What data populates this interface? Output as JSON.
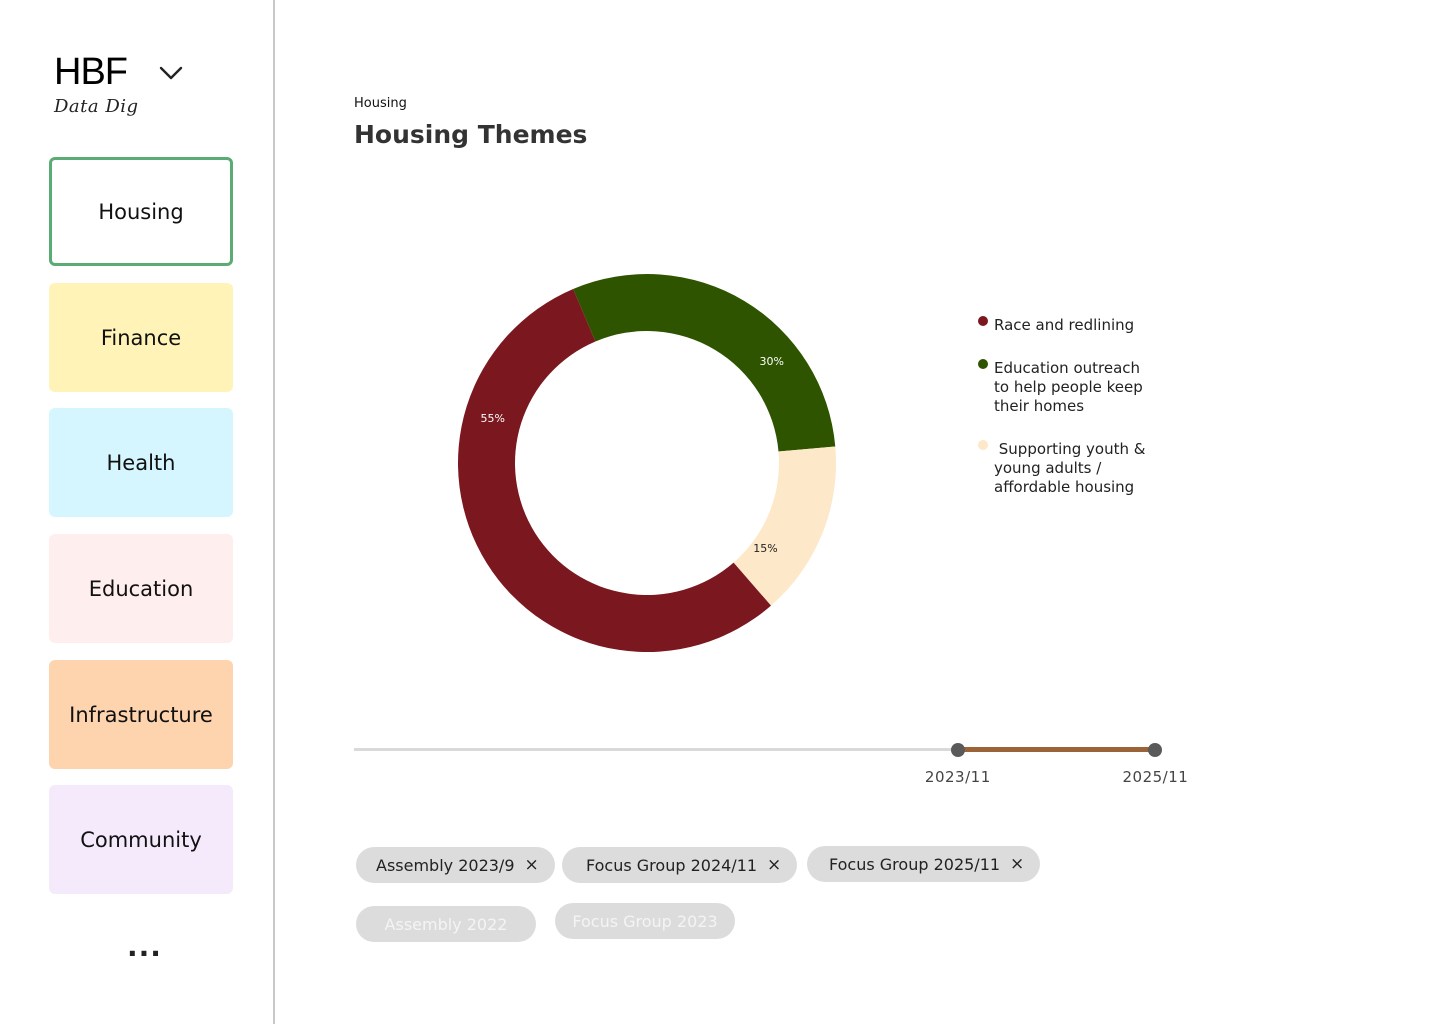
{
  "brand": {
    "title": "HBF",
    "subtitle": "Data Dig"
  },
  "sidebar": {
    "items": [
      {
        "label": "Housing",
        "color": "#ffffff",
        "border": "#5aab74",
        "active": true
      },
      {
        "label": "Finance",
        "color": "#fff3b8"
      },
      {
        "label": "Health",
        "color": "#d5f6fe"
      },
      {
        "label": "Education",
        "color": "#feeeee"
      },
      {
        "label": "Infrastructure",
        "color": "#fed4ae"
      },
      {
        "label": "Community",
        "color": "#f5eafc"
      }
    ],
    "more_label": "..."
  },
  "main": {
    "breadcrumb": "Housing",
    "title": "Housing Themes"
  },
  "chart_data": {
    "type": "pie",
    "title": "",
    "donut": true,
    "series": [
      {
        "name": "Race and redlining",
        "value": 55,
        "label": "55%",
        "color": "#7b171e"
      },
      {
        "name": "Education outreach to help people keep their homes",
        "value": 30,
        "label": "30%",
        "color": "#2e5400"
      },
      {
        "name": " Supporting youth & young adults / affordable housing",
        "value": 15,
        "label": "15%",
        "color": "#fde8c9"
      }
    ],
    "legend_placement": "right"
  },
  "legend": {
    "items": [
      {
        "lines": [
          "Race and redlining"
        ],
        "color": "#7b171e"
      },
      {
        "lines": [
          "Education outreach",
          "to help people keep",
          "their homes"
        ],
        "color": "#2e5400"
      },
      {
        "lines": [
          " Supporting youth &",
          "young adults /",
          "affordable housing"
        ],
        "color": "#fde8c9"
      }
    ]
  },
  "timeline": {
    "start_label": "2023/11",
    "end_label": "2025/11",
    "range_start_fraction": 0.752,
    "range_end_fraction": 0.998,
    "range_color": "#9a6438"
  },
  "filters": {
    "selected": [
      {
        "label": "Assembly 2023/9",
        "remove_icon": "×"
      },
      {
        "label": "Focus Group 2024/11",
        "remove_icon": "×"
      },
      {
        "label": "Focus Group 2025/11",
        "remove_icon": "×"
      }
    ],
    "available": [
      {
        "label": "Assembly 2022"
      },
      {
        "label": "Focus Group 2023"
      }
    ]
  }
}
